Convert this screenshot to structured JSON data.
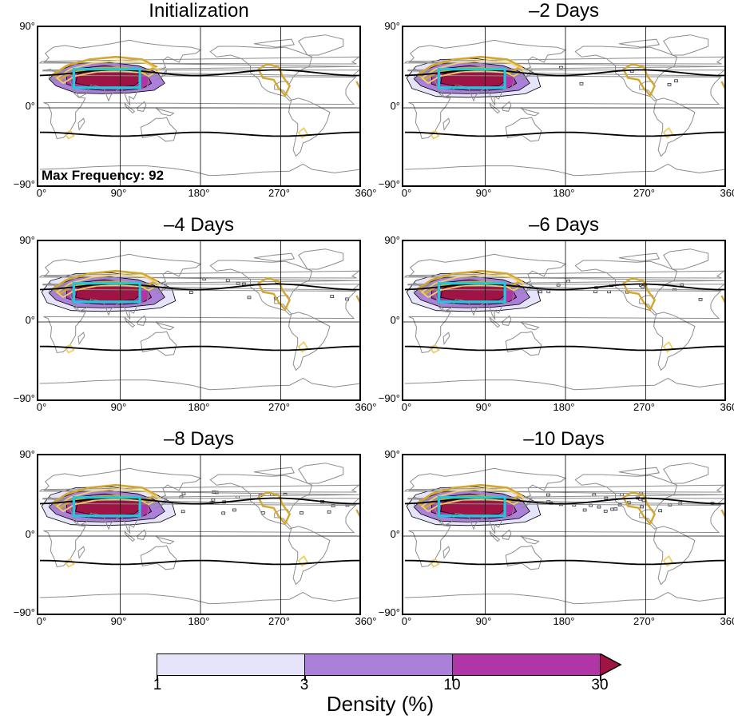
{
  "chart_data": {
    "type": "heatmap",
    "variable": "Density (%)",
    "panels": [
      {
        "title": "Initialization",
        "annotation": "Max Frequency: 92",
        "shaded_levels_present": [
          3,
          10,
          30
        ],
        "scatter_strength": 0
      },
      {
        "title": "–2 Days",
        "annotation": "",
        "shaded_levels_present": [
          1,
          3,
          10,
          30
        ],
        "scatter_strength": 1
      },
      {
        "title": "–4 Days",
        "annotation": "",
        "shaded_levels_present": [
          1,
          3,
          10,
          30
        ],
        "scatter_strength": 2
      },
      {
        "title": "–6 Days",
        "annotation": "",
        "shaded_levels_present": [
          1,
          3,
          10,
          30
        ],
        "scatter_strength": 3
      },
      {
        "title": "–8 Days",
        "annotation": "",
        "shaded_levels_present": [
          1,
          3,
          10,
          30
        ],
        "scatter_strength": 4
      },
      {
        "title": "–10 Days",
        "annotation": "",
        "shaded_levels_present": [
          1,
          3,
          10,
          30
        ],
        "scatter_strength": 5
      }
    ],
    "x_axis": {
      "range": [
        0,
        360
      ],
      "ticks": [
        0,
        90,
        180,
        270,
        360
      ],
      "tick_labels": [
        "0°",
        "90°",
        "180°",
        "270°",
        "360°"
      ]
    },
    "y_axis": {
      "range": [
        -90,
        90
      ],
      "ticks": [
        -90,
        0,
        90
      ],
      "tick_labels": [
        "−90°",
        "0°",
        "90°"
      ]
    },
    "grid": true,
    "region_box": {
      "lon": [
        38,
        112
      ],
      "lat": [
        23,
        44
      ],
      "color": "#20c8dc"
    },
    "colorbar": {
      "label": "Density (%)",
      "boundaries": [
        1,
        3,
        10,
        30
      ],
      "boundary_labels": [
        "1",
        "3",
        "10",
        "30"
      ],
      "colors": [
        "#e6e4fa",
        "#aa80db",
        "#b035a6",
        "#9e1545"
      ],
      "extend": "max"
    },
    "overlay_colors": {
      "gold_contours": "#d4a62c",
      "light_gold_contours": "#f0cf68",
      "coastlines": "#8c8c8c",
      "jet_line": "#000000"
    }
  }
}
